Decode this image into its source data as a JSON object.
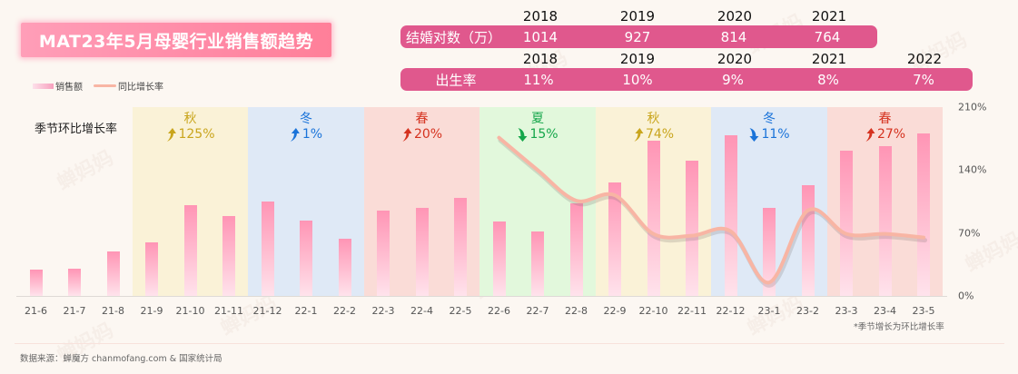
{
  "title": "MAT23年5月母婴行业销售额趋势",
  "legend": {
    "bar_label": "销售额",
    "line_label": "同比增长率"
  },
  "marriage": {
    "label": "结婚对数（万）",
    "years": [
      "2018",
      "2019",
      "2020",
      "2021"
    ],
    "values": [
      "1014",
      "927",
      "814",
      "764"
    ]
  },
  "birth_rate": {
    "label": "出生率",
    "years": [
      "2018",
      "2019",
      "2020",
      "2021",
      "2022"
    ],
    "values": [
      "11%",
      "10%",
      "9%",
      "8%",
      "7%"
    ]
  },
  "side_label": "季节环比增长率",
  "seasons": [
    {
      "name": "秋",
      "direction": "up",
      "value": "125%",
      "color": "#c9a51c",
      "bg": "#faf2d7",
      "from": 3,
      "to": 5
    },
    {
      "name": "冬",
      "direction": "up",
      "value": "1%",
      "color": "#1a73d9",
      "bg": "#dfe9f6",
      "from": 6,
      "to": 8
    },
    {
      "name": "春",
      "direction": "up",
      "value": "20%",
      "color": "#d5321f",
      "bg": "#fadcd7",
      "from": 9,
      "to": 11
    },
    {
      "name": "夏",
      "direction": "down",
      "value": "15%",
      "color": "#14a64a",
      "bg": "#e2f8dc",
      "from": 12,
      "to": 14
    },
    {
      "name": "秋",
      "direction": "up",
      "value": "74%",
      "color": "#c9a51c",
      "bg": "#faf2d7",
      "from": 15,
      "to": 17
    },
    {
      "name": "冬",
      "direction": "down",
      "value": "11%",
      "color": "#1a73d9",
      "bg": "#dfe9f6",
      "from": 18,
      "to": 20
    },
    {
      "name": "春",
      "direction": "up",
      "value": "27%",
      "color": "#d5321f",
      "bg": "#fadcd7",
      "from": 21,
      "to": 23
    }
  ],
  "footnote": "*季节增长为环比增长率",
  "source": "数据来源：蝉魔方 chanmofang.com & 国家统计局",
  "watermark": "蝉妈妈",
  "colors": {
    "background": "#fcf7f2",
    "stat_bar": "#e0588d",
    "bar_top": "#ff95b5",
    "bar_bottom": "#ffe3ec",
    "line": "#f8b5a4"
  },
  "chart_data": {
    "type": "bar",
    "title": "MAT23年5月母婴行业销售额趋势",
    "xlabel": "",
    "ylabel": "",
    "categories": [
      "21-6",
      "21-7",
      "21-8",
      "21-9",
      "21-10",
      "21-11",
      "21-12",
      "22-1",
      "22-2",
      "22-3",
      "22-4",
      "22-5",
      "22-6",
      "22-7",
      "22-8",
      "22-9",
      "22-10",
      "22-11",
      "22-12",
      "23-1",
      "23-2",
      "23-3",
      "23-4",
      "23-5"
    ],
    "series": [
      {
        "name": "销售额",
        "type": "bar",
        "axis": "none (relative height, px above baseline)",
        "values": [
          29,
          30,
          49,
          59,
          100,
          88,
          104,
          83,
          63,
          94,
          97,
          108,
          82,
          71,
          102,
          125,
          171,
          149,
          177,
          97,
          122,
          160,
          165,
          179
        ]
      },
      {
        "name": "同比增长率",
        "type": "line",
        "axis": "right",
        "values": [
          null,
          null,
          null,
          null,
          null,
          null,
          null,
          null,
          null,
          null,
          null,
          null,
          176,
          140,
          106,
          112,
          69,
          67,
          72,
          15,
          95,
          69,
          69,
          65
        ]
      }
    ],
    "y_right": {
      "ticks": [
        "0%",
        "70%",
        "140%",
        "210%"
      ],
      "ylim": [
        0,
        210
      ]
    },
    "grid": false,
    "legend_position": "top-left",
    "annotations": [
      "秋 ↑125%",
      "冬 ↑1%",
      "春 ↑20%",
      "夏 ↓15%",
      "秋 ↑74%",
      "冬 ↓11%",
      "春 ↑27%"
    ]
  }
}
